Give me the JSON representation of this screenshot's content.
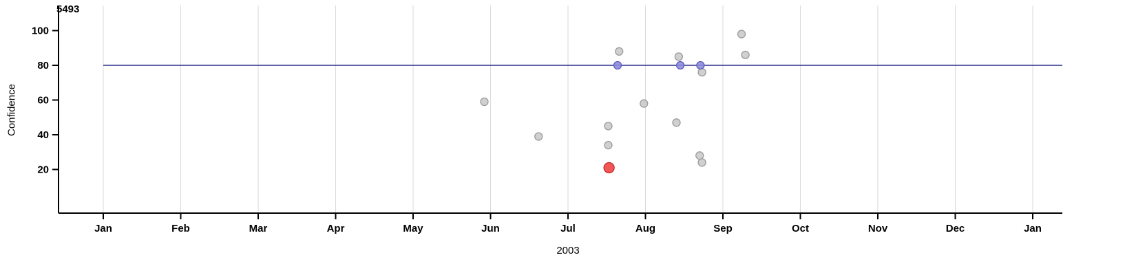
{
  "chart_data": {
    "type": "scatter",
    "title": "5493",
    "xlabel": "2003",
    "ylabel": "Confidence",
    "x_tick_labels": [
      "Jan",
      "Feb",
      "Mar",
      "Apr",
      "May",
      "Jun",
      "Jul",
      "Aug",
      "Sep",
      "Oct",
      "Nov",
      "Dec",
      "Jan"
    ],
    "y_ticks": [
      20,
      40,
      60,
      80,
      100
    ],
    "xlim_months": [
      0,
      12
    ],
    "ylim": [
      -5,
      114
    ],
    "grid": "vertical-month-gridlines",
    "legend": "none",
    "threshold_line": {
      "y": 80,
      "color": "#2d2d8c"
    },
    "series": [
      {
        "name": "gray-points",
        "color": "#c9c9c9",
        "stroke": "#9b9b9b",
        "emphasized": false,
        "points": [
          {
            "x": 4.92,
            "y": 59
          },
          {
            "x": 5.62,
            "y": 39
          },
          {
            "x": 6.52,
            "y": 45
          },
          {
            "x": 6.52,
            "y": 34
          },
          {
            "x": 6.66,
            "y": 88
          },
          {
            "x": 6.98,
            "y": 58
          },
          {
            "x": 7.4,
            "y": 47
          },
          {
            "x": 7.43,
            "y": 85
          },
          {
            "x": 7.7,
            "y": 28
          },
          {
            "x": 7.73,
            "y": 76
          },
          {
            "x": 7.73,
            "y": 24
          },
          {
            "x": 8.24,
            "y": 98
          },
          {
            "x": 8.29,
            "y": 86
          }
        ]
      },
      {
        "name": "blue-points",
        "color": "#8b8bd9",
        "stroke": "#5c5cc0",
        "emphasized": false,
        "points": [
          {
            "x": 6.64,
            "y": 80
          },
          {
            "x": 7.45,
            "y": 80
          },
          {
            "x": 7.71,
            "y": 80
          }
        ]
      },
      {
        "name": "red-point",
        "color": "#ee4140",
        "stroke": "#c22a28",
        "emphasized": true,
        "points": [
          {
            "x": 6.53,
            "y": 21
          }
        ]
      }
    ]
  },
  "colors": {
    "axis": "#000000",
    "gridline": "#d9d9d9",
    "background": "#ffffff"
  }
}
